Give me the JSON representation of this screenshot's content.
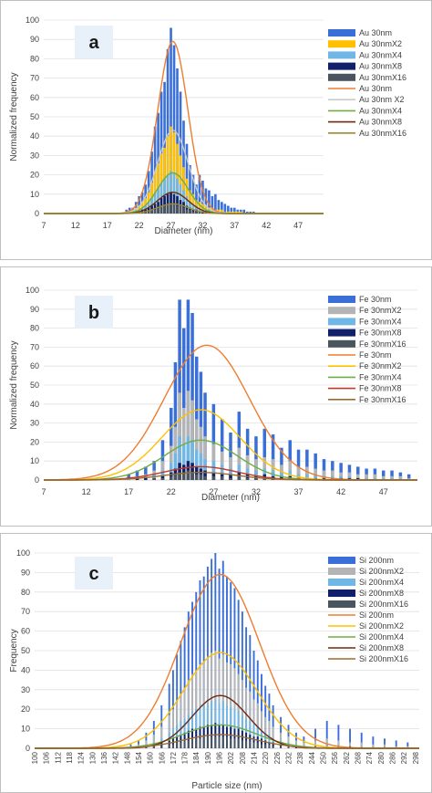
{
  "chart_data": [
    {
      "type": "bar",
      "panel_label": "a",
      "xlabel": "Diameter (nm)",
      "ylabel": "Normalized frequency",
      "xlim": [
        7,
        51
      ],
      "ylim": [
        0,
        100
      ],
      "xticks": [
        "7",
        "12",
        "17",
        "22",
        "27",
        "32",
        "37",
        "42",
        "47"
      ],
      "yticks": [
        "0",
        "10",
        "20",
        "30",
        "40",
        "50",
        "60",
        "70",
        "80",
        "90",
        "100"
      ],
      "legend_position": "right",
      "bar_x": [
        20,
        20.5,
        21,
        21.5,
        22,
        22.5,
        23,
        23.5,
        24,
        24.5,
        25,
        25.5,
        26,
        26.5,
        27,
        27.5,
        28,
        28.5,
        29,
        29.5,
        30,
        30.5,
        31,
        31.5,
        32,
        32.5,
        33,
        33.5,
        34,
        34.5,
        35,
        35.5,
        36,
        36.5,
        37,
        37.5,
        38,
        38.5,
        39,
        39.5,
        40
      ],
      "bar_series": [
        {
          "name": "Au 30nm",
          "color": "#3a6fd8",
          "values": [
            2,
            3,
            3,
            6,
            9,
            11,
            15,
            22,
            32,
            45,
            52,
            63,
            68,
            85,
            96,
            87,
            75,
            63,
            48,
            36,
            25,
            20,
            15,
            20,
            17,
            13,
            12,
            9,
            10,
            7,
            6,
            5,
            4,
            3,
            3,
            2,
            2,
            2,
            1,
            1,
            1
          ]
        },
        {
          "name": "Au 30nmX2",
          "color": "#ffc000",
          "values": [
            1,
            1,
            2,
            3,
            4,
            6,
            8,
            11,
            16,
            22,
            26,
            31,
            34,
            40,
            45,
            42,
            36,
            30,
            24,
            18,
            12,
            10,
            7,
            6,
            5,
            4,
            3,
            3,
            2,
            2,
            2,
            1,
            1,
            1,
            1,
            1,
            1,
            0,
            0,
            0,
            0
          ]
        },
        {
          "name": "Au 30nmX4",
          "color": "#71b7e6",
          "values": [
            1,
            1,
            1,
            2,
            2,
            3,
            4,
            6,
            8,
            11,
            13,
            16,
            18,
            20,
            22,
            21,
            18,
            15,
            12,
            9,
            6,
            5,
            4,
            3,
            2,
            2,
            2,
            1,
            1,
            1,
            1,
            1,
            0,
            0,
            0,
            0,
            0,
            0,
            0,
            0,
            0
          ]
        },
        {
          "name": "Au 30nmX8",
          "color": "#10206b",
          "values": [
            0,
            0,
            1,
            1,
            1,
            2,
            2,
            3,
            4,
            5,
            6,
            8,
            9,
            10,
            11,
            10,
            9,
            7,
            6,
            4,
            3,
            2,
            2,
            1,
            1,
            1,
            1,
            0,
            0,
            0,
            0,
            0,
            0,
            0,
            0,
            0,
            0,
            0,
            0,
            0,
            0
          ]
        },
        {
          "name": "Au 30nmX16",
          "color": "#4a5560",
          "values": [
            0,
            0,
            0,
            0,
            1,
            1,
            1,
            1,
            2,
            2,
            3,
            4,
            4,
            5,
            5,
            5,
            4,
            4,
            3,
            2,
            2,
            1,
            1,
            1,
            0,
            0,
            0,
            0,
            0,
            0,
            0,
            0,
            0,
            0,
            0,
            0,
            0,
            0,
            0,
            0,
            0
          ]
        }
      ],
      "fit_series": [
        {
          "name": "Au 30nm",
          "color": "#ed7d31",
          "peak": 89,
          "mean": 27.3,
          "sd": 2.35
        },
        {
          "name": "Au 30nm X2",
          "color": "#c9c9c9",
          "peak": 43,
          "mean": 27.3,
          "sd": 2.4
        },
        {
          "name": "Au 30nmX4",
          "color": "#70ad47",
          "peak": 21,
          "mean": 27.3,
          "sd": 2.4
        },
        {
          "name": "Au 30nmX8",
          "color": "#6b2b10",
          "peak": 11,
          "mean": 27.3,
          "sd": 2.4
        },
        {
          "name": "Au 30nmX16",
          "color": "#9c8a2e",
          "peak": 5,
          "mean": 27.3,
          "sd": 2.4
        }
      ]
    },
    {
      "type": "bar",
      "panel_label": "b",
      "xlabel": "Diameter (nm)",
      "ylabel": "Normalized frequency",
      "xlim": [
        7,
        51
      ],
      "ylim": [
        0,
        100
      ],
      "xticks": [
        "7",
        "12",
        "17",
        "22",
        "27",
        "32",
        "37",
        "42",
        "47"
      ],
      "yticks": [
        "0",
        "10",
        "20",
        "30",
        "40",
        "50",
        "60",
        "70",
        "80",
        "90",
        "100"
      ],
      "legend_position": "right",
      "bar_x": [
        17,
        18,
        19,
        20,
        21,
        22,
        22.5,
        23,
        23.5,
        24,
        24.5,
        25,
        25.5,
        26,
        27,
        28,
        29,
        30,
        31,
        32,
        33,
        34,
        35,
        36,
        37,
        38,
        39,
        40,
        41,
        42,
        43,
        44,
        45,
        46,
        47,
        48,
        49,
        50
      ],
      "bar_series": [
        {
          "name": "Fe 30nm",
          "color": "#3a6fd8",
          "values": [
            3,
            5,
            7,
            10,
            21,
            38,
            62,
            95,
            80,
            95,
            88,
            65,
            57,
            46,
            40,
            32,
            25,
            36,
            27,
            23,
            27,
            24,
            17,
            21,
            16,
            16,
            14,
            11,
            10,
            9,
            8,
            7,
            6,
            6,
            5,
            5,
            4,
            3
          ]
        },
        {
          "name": "Fe 30nmX2",
          "color": "#b4b4b4",
          "values": [
            1,
            2,
            3,
            5,
            10,
            18,
            28,
            46,
            38,
            47,
            42,
            32,
            28,
            23,
            19,
            15,
            12,
            17,
            13,
            11,
            12,
            11,
            8,
            10,
            7,
            7,
            6,
            5,
            5,
            4,
            4,
            3,
            3,
            3,
            2,
            2,
            2,
            1
          ]
        },
        {
          "name": "Fe 30nmX4",
          "color": "#71b7e6",
          "values": [
            1,
            1,
            2,
            3,
            5,
            9,
            14,
            23,
            19,
            23,
            21,
            16,
            14,
            11,
            10,
            8,
            6,
            8,
            6,
            5,
            6,
            5,
            4,
            5,
            3,
            3,
            3,
            2,
            2,
            2,
            2,
            1,
            1,
            1,
            1,
            1,
            1,
            1
          ]
        },
        {
          "name": "Fe 30nmX8",
          "color": "#10206b",
          "values": [
            0,
            1,
            1,
            1,
            2,
            4,
            6,
            9,
            8,
            10,
            9,
            7,
            6,
            5,
            4,
            3,
            3,
            4,
            3,
            2,
            3,
            2,
            2,
            2,
            1,
            1,
            1,
            1,
            1,
            1,
            1,
            1,
            0,
            0,
            0,
            0,
            0,
            0
          ]
        },
        {
          "name": "Fe 30nmX16",
          "color": "#4a5560",
          "values": [
            0,
            0,
            0,
            1,
            1,
            2,
            3,
            4,
            4,
            5,
            4,
            3,
            3,
            2,
            2,
            2,
            1,
            2,
            1,
            1,
            1,
            1,
            1,
            1,
            1,
            1,
            0,
            0,
            0,
            0,
            0,
            0,
            0,
            0,
            0,
            0,
            0,
            0
          ]
        }
      ],
      "fit_series": [
        {
          "name": "Fe 30nm",
          "color": "#ed7d31",
          "peak": 71,
          "mean": 26.2,
          "sd": 5.0
        },
        {
          "name": "Fe 30nmX2",
          "color": "#ffc000",
          "peak": 37,
          "mean": 25.5,
          "sd": 4.6
        },
        {
          "name": "Fe 30nmX4",
          "color": "#70ad47",
          "peak": 21,
          "mean": 25.5,
          "sd": 4.3
        },
        {
          "name": "Fe 30nmX8",
          "color": "#c0392b",
          "peak": 7,
          "mean": 25.5,
          "sd": 4.3
        },
        {
          "name": "Fe 30nmX16",
          "color": "#9c6b2e",
          "peak": 4,
          "mean": 25.5,
          "sd": 4.3
        }
      ]
    },
    {
      "type": "bar",
      "panel_label": "c",
      "xlabel": "Particle size (nm)",
      "ylabel": "Frequency",
      "xlim": [
        100,
        300
      ],
      "ylim": [
        0,
        100
      ],
      "xticks": [
        "100",
        "106",
        "112",
        "118",
        "124",
        "130",
        "136",
        "142",
        "148",
        "154",
        "160",
        "166",
        "172",
        "178",
        "184",
        "190",
        "196",
        "202",
        "208",
        "214",
        "220",
        "226",
        "232",
        "238",
        "244",
        "250",
        "256",
        "262",
        "268",
        "274",
        "280",
        "286",
        "292",
        "298"
      ],
      "yticks": [
        "0",
        "10",
        "20",
        "30",
        "40",
        "50",
        "60",
        "70",
        "80",
        "90",
        "100"
      ],
      "legend_position": "right",
      "bar_x": [
        150,
        154,
        158,
        162,
        166,
        170,
        172,
        174,
        176,
        178,
        180,
        182,
        184,
        186,
        188,
        190,
        192,
        194,
        196,
        198,
        200,
        202,
        204,
        206,
        208,
        210,
        212,
        214,
        216,
        218,
        220,
        222,
        224,
        228,
        232,
        236,
        240,
        246,
        252,
        258,
        264,
        270,
        276,
        282,
        288,
        294
      ],
      "bar_series": [
        {
          "name": "Si 200nm",
          "color": "#3a6fd8",
          "values": [
            2,
            4,
            8,
            14,
            22,
            33,
            40,
            48,
            55,
            62,
            70,
            75,
            80,
            86,
            88,
            93,
            97,
            100,
            92,
            96,
            88,
            85,
            82,
            76,
            70,
            62,
            58,
            50,
            45,
            38,
            32,
            28,
            22,
            16,
            12,
            8,
            6,
            10,
            14,
            12,
            10,
            8,
            6,
            5,
            4,
            3
          ]
        },
        {
          "name": "Si 200nmX2",
          "color": "#b4b4b4",
          "values": [
            1,
            2,
            4,
            7,
            11,
            17,
            20,
            24,
            28,
            31,
            35,
            38,
            40,
            43,
            44,
            47,
            49,
            50,
            46,
            48,
            44,
            43,
            41,
            38,
            35,
            31,
            29,
            25,
            23,
            19,
            16,
            14,
            11,
            8,
            6,
            4,
            3,
            4,
            5,
            4,
            3,
            3,
            2,
            2,
            1,
            1
          ]
        },
        {
          "name": "Si 200nmX4",
          "color": "#71b7e6",
          "values": [
            1,
            1,
            2,
            3,
            5,
            8,
            10,
            12,
            14,
            15,
            17,
            19,
            20,
            21,
            22,
            23,
            24,
            25,
            23,
            24,
            22,
            21,
            20,
            19,
            17,
            15,
            14,
            12,
            11,
            9,
            8,
            7,
            5,
            4,
            3,
            2,
            1,
            2,
            2,
            2,
            1,
            1,
            1,
            1,
            0,
            0
          ]
        },
        {
          "name": "Si 200nmX8",
          "color": "#10206b",
          "values": [
            0,
            1,
            1,
            2,
            3,
            4,
            5,
            6,
            7,
            8,
            9,
            10,
            10,
            11,
            11,
            12,
            12,
            13,
            12,
            12,
            11,
            11,
            10,
            10,
            9,
            8,
            7,
            6,
            6,
            5,
            4,
            3,
            3,
            2,
            1,
            1,
            1,
            1,
            1,
            1,
            1,
            0,
            0,
            0,
            0,
            0
          ]
        },
        {
          "name": "Si 200nmX16",
          "color": "#4a5560",
          "values": [
            0,
            0,
            1,
            1,
            1,
            2,
            2,
            3,
            3,
            4,
            4,
            5,
            5,
            5,
            6,
            6,
            6,
            6,
            6,
            6,
            6,
            5,
            5,
            5,
            4,
            4,
            4,
            3,
            3,
            2,
            2,
            2,
            1,
            1,
            1,
            0,
            0,
            1,
            1,
            1,
            0,
            0,
            0,
            0,
            0,
            0
          ]
        }
      ],
      "fit_series": [
        {
          "name": "Si 200nm",
          "color": "#ed7d31",
          "peak": 89,
          "mean": 196.5,
          "sd": 20.5
        },
        {
          "name": "Si 200nmX2",
          "color": "#ffc000",
          "peak": 49,
          "mean": 196.5,
          "sd": 19.0
        },
        {
          "name": "Si 200nmX4",
          "color": "#70ad47",
          "peak": 12,
          "mean": 196.5,
          "sd": 19.0
        },
        {
          "name": "Si 200nmX8",
          "color": "#6b2b10",
          "peak": 27,
          "mean": 196.5,
          "sd": 14.5
        },
        {
          "name": "Si 200nmX16",
          "color": "#9c6b2e",
          "peak": 7,
          "mean": 196.5,
          "sd": 19.0
        }
      ]
    }
  ]
}
